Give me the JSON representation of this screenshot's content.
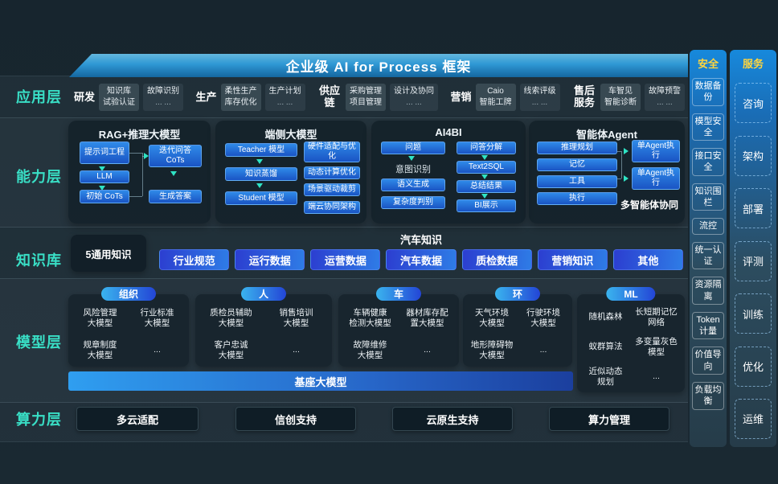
{
  "banner": {
    "title": "企业级 AI for Process 框架"
  },
  "application": {
    "label": "应用层",
    "sections": [
      {
        "name": "研发",
        "boxes": [
          [
            "知识库",
            "试验认证"
          ],
          [
            "故障识别",
            "... ..."
          ]
        ]
      },
      {
        "name": "生产",
        "boxes": [
          [
            "柔性生产",
            "库存优化"
          ],
          [
            "生产计划",
            "... ..."
          ]
        ]
      },
      {
        "name": "供应链",
        "boxes": [
          [
            "采购管理",
            "项目管理"
          ],
          [
            "设计及协同",
            "... ..."
          ]
        ]
      },
      {
        "name": "营销",
        "boxes": [
          [
            "Caio",
            "智能工牌"
          ],
          [
            "线索评级",
            "... ..."
          ]
        ]
      },
      {
        "name": "售后服务",
        "boxes": [
          [
            "车智见",
            "智能诊断"
          ],
          [
            "故障预警",
            "... ..."
          ]
        ]
      }
    ]
  },
  "capability": {
    "label": "能力层",
    "panels": [
      {
        "title": "RAG+推理大模型",
        "left": [
          "提示词工程",
          "LLM",
          "初始 CoTs"
        ],
        "right": [
          "迭代问答CoTs",
          "生成答案"
        ]
      },
      {
        "title": "端侧大模型",
        "left": [
          "Teacher 模型",
          "知识蒸馏",
          "Student 模型"
        ],
        "right": [
          "硬件适配与优化",
          "动态计算优化",
          "场景驱动裁剪",
          "端云协同架构"
        ]
      },
      {
        "title": "AI4BI",
        "left": [
          "问题",
          "意图识别",
          "语义生成",
          "复杂度判别"
        ],
        "right": [
          "问答分解",
          "Text2SQL",
          "总结结果",
          "BI展示"
        ]
      },
      {
        "title": "智能体Agent",
        "left": [
          "推理规划",
          "记忆",
          "工具",
          "执行"
        ],
        "right": [
          "单Agent执行",
          "单Agent执行"
        ],
        "caption": "多智能体协同"
      }
    ]
  },
  "knowledge": {
    "label": "知识库",
    "general": "5通用知识",
    "domain_title": "汽车知识",
    "buttons": [
      "行业规范",
      "运行数据",
      "运营数据",
      "汽车数据",
      "质检数据",
      "营销知识",
      "其他"
    ]
  },
  "model": {
    "label": "模型层",
    "groups": [
      {
        "pill": "组织",
        "items": [
          "风险管理\n大模型",
          "行业标准\n大模型",
          "规章制度\n大模型",
          "..."
        ]
      },
      {
        "pill": "人",
        "items": [
          "质检员辅助\n大模型",
          "销售培训\n大模型",
          "客户忠诚\n大模型",
          "..."
        ]
      },
      {
        "pill": "车",
        "items": [
          "车辆健康\n检测大模型",
          "器材库存配\n置大模型",
          "故障维修\n大模型",
          "..."
        ]
      },
      {
        "pill": "环",
        "items": [
          "天气环境\n大模型",
          "行驶环境\n大模型",
          "地形障碍物\n大模型",
          "..."
        ]
      },
      {
        "pill": "ML",
        "items": [
          "随机森林",
          "长短期记忆\n网络",
          "蚁群算法",
          "多变量灰色\n模型",
          "近似动态\n规划",
          "..."
        ]
      }
    ],
    "base_model": "基座大模型"
  },
  "compute": {
    "label": "算力层",
    "buttons": [
      "多云适配",
      "信创支持",
      "云原生支持",
      "算力管理"
    ]
  },
  "side": {
    "security": {
      "title": "安全",
      "items": [
        "数据备份",
        "模型安全",
        "接口安全",
        "知识围栏",
        "流控",
        "统一认证",
        "资源隔离",
        "Token计量",
        "价值导向",
        "负载均衡"
      ]
    },
    "service": {
      "title": "服务",
      "items": [
        "咨询",
        "架构",
        "部署",
        "评测",
        "训练",
        "优化",
        "运维"
      ]
    }
  },
  "colors": {
    "accent_teal": "#39dfc6",
    "box_blue": "#1f6fd8",
    "header_yellow": "#ffd53e"
  }
}
